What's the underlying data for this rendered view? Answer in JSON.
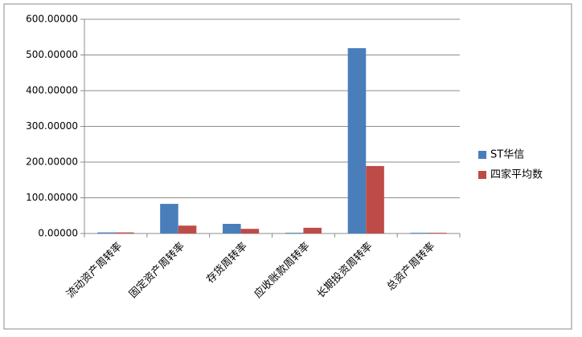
{
  "chart_data": {
    "type": "bar",
    "categories": [
      "流动资产周转率",
      "固定资产周转率",
      "存货周转率",
      "应收账款周转率",
      "长期投资周转率",
      "总资产周转率"
    ],
    "series": [
      {
        "name": "ST华信",
        "color": "#4a7ebb",
        "values": [
          3,
          83,
          27,
          2,
          519,
          2
        ]
      },
      {
        "name": "四家平均数",
        "color": "#be4b48",
        "values": [
          3,
          22,
          13,
          16,
          189,
          2
        ]
      }
    ],
    "ylim": [
      0,
      600
    ],
    "yticks": [
      {
        "value": 0,
        "label": "0.00000"
      },
      {
        "value": 100,
        "label": "100.00000"
      },
      {
        "value": 200,
        "label": "200.00000"
      },
      {
        "value": 300,
        "label": "300.00000"
      },
      {
        "value": 400,
        "label": "400.00000"
      },
      {
        "value": 500,
        "label": "500.00000"
      },
      {
        "value": 600,
        "label": "600.00000"
      }
    ],
    "grid": true,
    "legend": "right"
  }
}
